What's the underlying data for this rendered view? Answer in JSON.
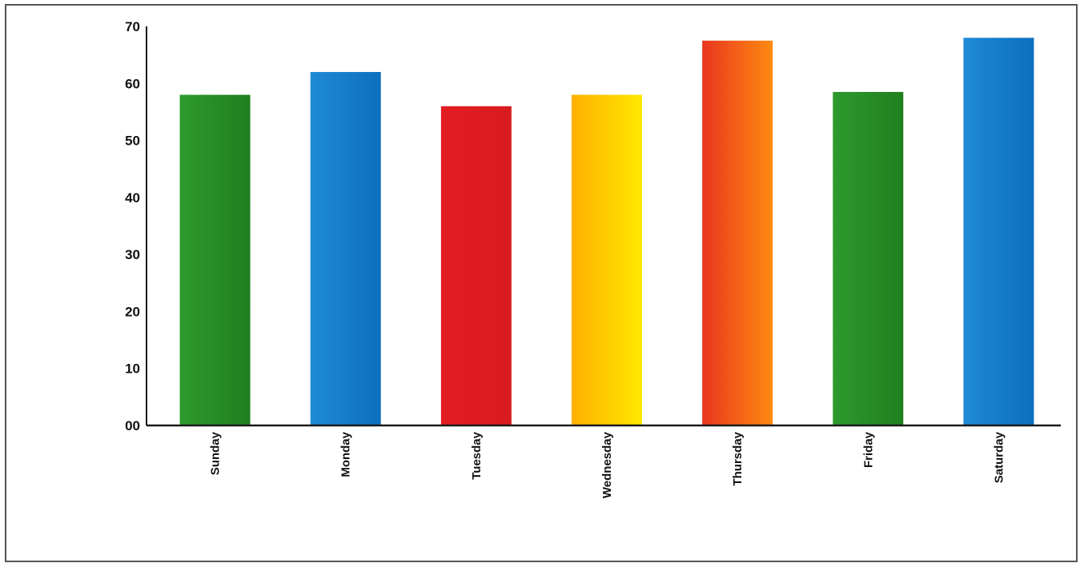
{
  "chart_data": {
    "type": "bar",
    "title": "",
    "xlabel": "",
    "ylabel": "",
    "ylim": [
      0,
      70
    ],
    "yticks": [
      0,
      10,
      20,
      30,
      40,
      50,
      60,
      70
    ],
    "ytick_labels": [
      "00",
      "10",
      "20",
      "30",
      "40",
      "50",
      "60",
      "70"
    ],
    "grid": false,
    "legend": "none",
    "categories": [
      "Sunday",
      "Monday",
      "Tuesday",
      "Wednesday",
      "Thursday",
      "Friday",
      "Saturday"
    ],
    "values": [
      58,
      62,
      56,
      58,
      67.5,
      58.5,
      68
    ],
    "bar_colors": [
      [
        "#2e9a2e",
        "#1f7f1f"
      ],
      [
        "#1e8ad6",
        "#0d6fbf"
      ],
      [
        "#e31d22",
        "#d81b1f"
      ],
      [
        "#ffb000",
        "#ffe800"
      ],
      [
        "#e8361e",
        "#ff8a12"
      ],
      [
        "#2e9a2e",
        "#1f7f1f"
      ],
      [
        "#1e8ad6",
        "#0d6fbf"
      ]
    ]
  }
}
